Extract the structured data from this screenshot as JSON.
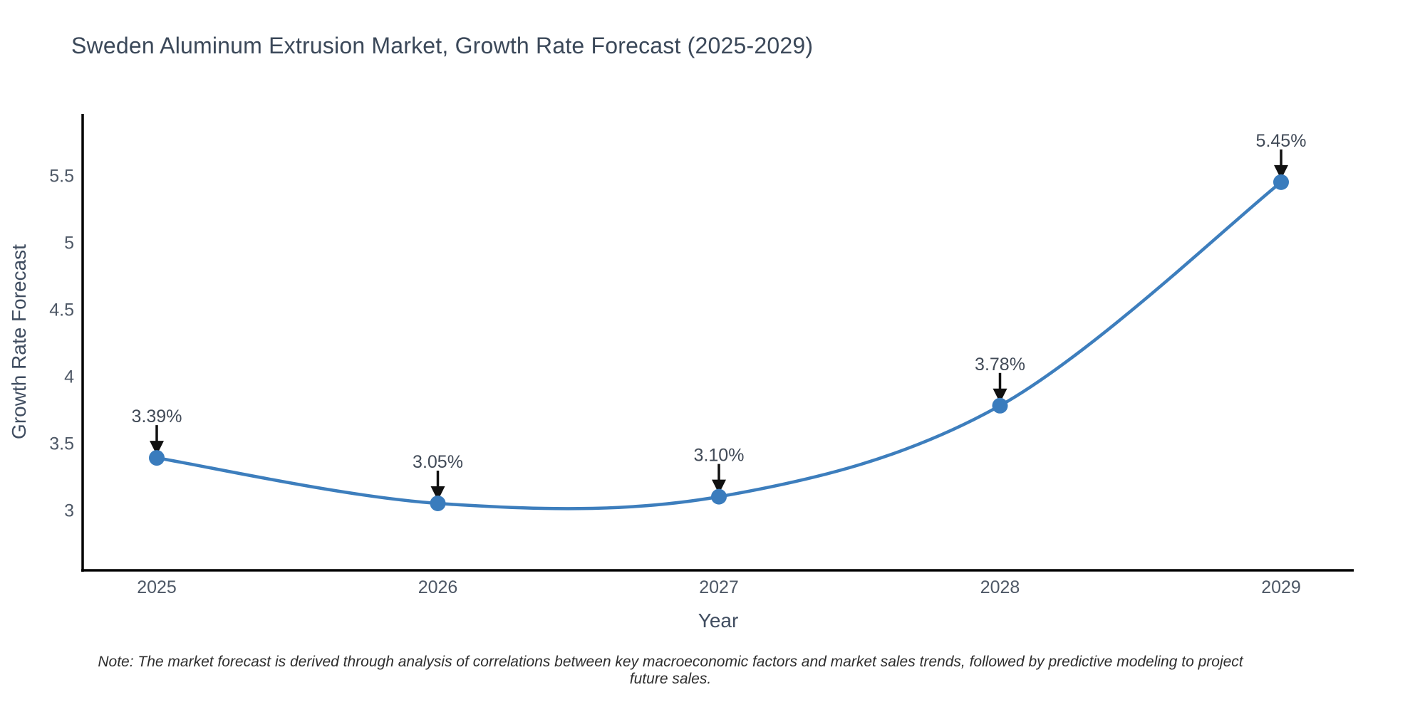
{
  "title": "Sweden Aluminum Extrusion Market, Growth Rate Forecast (2025-2029)",
  "note": "Note: The market forecast is derived through analysis of correlations between key macroeconomic factors and market sales trends, followed by predictive modeling to project future sales.",
  "chart_data": {
    "type": "line",
    "line_shape": "spline",
    "title": "Sweden Aluminum Extrusion Market, Growth Rate Forecast (2025-2029)",
    "xlabel": "Year",
    "ylabel": "Growth Rate Forecast",
    "x": [
      2025,
      2026,
      2027,
      2028,
      2029
    ],
    "values": [
      3.39,
      3.05,
      3.1,
      3.78,
      5.45
    ],
    "point_labels": [
      "3.39%",
      "3.05%",
      "3.10%",
      "3.78%",
      "5.45%"
    ],
    "x_tick_labels": [
      "2025",
      "2026",
      "2027",
      "2028",
      "2029"
    ],
    "y_ticks": [
      3,
      3.5,
      4,
      4.5,
      5,
      5.5
    ],
    "y_tick_labels": [
      "3",
      "3.5",
      "4",
      "4.5",
      "5",
      "5.5"
    ],
    "ylim": [
      2.55,
      5.96
    ],
    "grid": false,
    "legend": "none",
    "annotations_style": "black-arrow-pointing-down-to-marker",
    "colors": {
      "line": "#3d7ebd",
      "marker": "#3a7cbd",
      "arrow": "#111111",
      "axis_spine": "#000000",
      "tick_label": "#4e5866",
      "title_text": "#3b4859",
      "background": "#ffffff"
    }
  }
}
